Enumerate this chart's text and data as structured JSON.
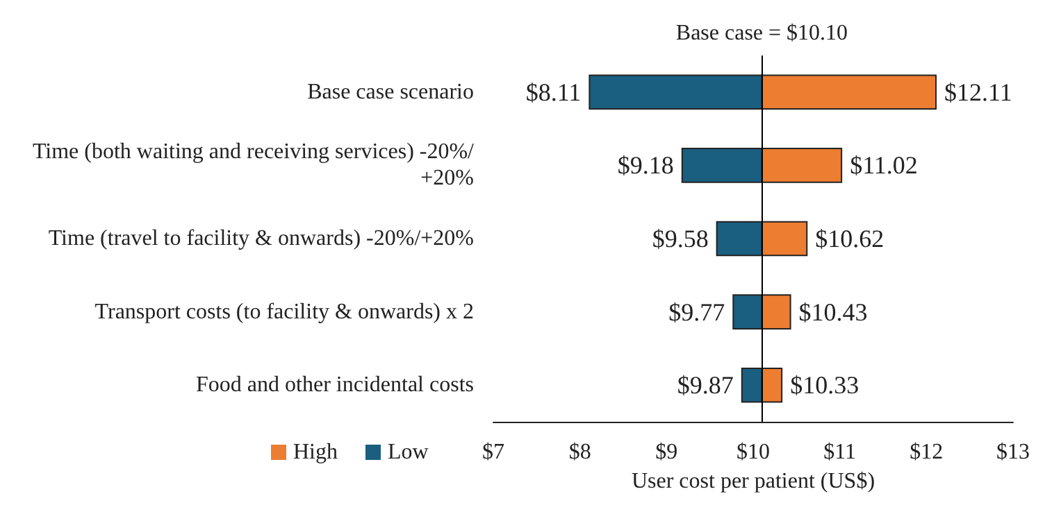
{
  "chart_data": {
    "type": "bar",
    "orientation": "horizontal",
    "xlabel": "User cost per patient (US$)",
    "categories": [
      "Base case scenario",
      "Time (both waiting and receiving services) -20%/+20%",
      "Time (travel to facility & onwards) -20%/+20%",
      "Transport costs (to facility & onwards) x 2",
      "Food and other incidental costs"
    ],
    "series": [
      {
        "name": "High",
        "color": "#ed7d31",
        "base": [
          10.1,
          10.1,
          10.1,
          10.1,
          10.1
        ],
        "values": [
          2.01,
          0.92,
          0.52,
          0.33,
          0.23
        ],
        "value_labels": [
          "$12.11",
          "$11.02",
          "$10.62",
          "$10.43",
          "$10.33"
        ]
      },
      {
        "name": "Low",
        "color": "#1a5e80",
        "base": [
          10.1,
          10.1,
          10.1,
          10.1,
          10.1
        ],
        "values": [
          -1.99,
          -0.92,
          -0.52,
          -0.33,
          -0.23
        ],
        "value_labels": [
          "$8.11",
          "$9.18",
          "$9.58",
          "$9.77",
          "$9.87"
        ]
      }
    ],
    "xlim": [
      7,
      13
    ],
    "xticks": [
      {
        "value": 7,
        "label": "$7"
      },
      {
        "value": 8,
        "label": "$8"
      },
      {
        "value": 9,
        "label": "$9"
      },
      {
        "value": 10,
        "label": "$10"
      },
      {
        "value": 11,
        "label": "$11"
      },
      {
        "value": 12,
        "label": "$12"
      },
      {
        "value": 13,
        "label": "$13"
      }
    ],
    "ref_lines": [
      {
        "axis": "x",
        "value": 10.1,
        "label": "Base case = $10.10",
        "color": "#000000"
      }
    ],
    "legend": "bottom left",
    "grid": false
  }
}
